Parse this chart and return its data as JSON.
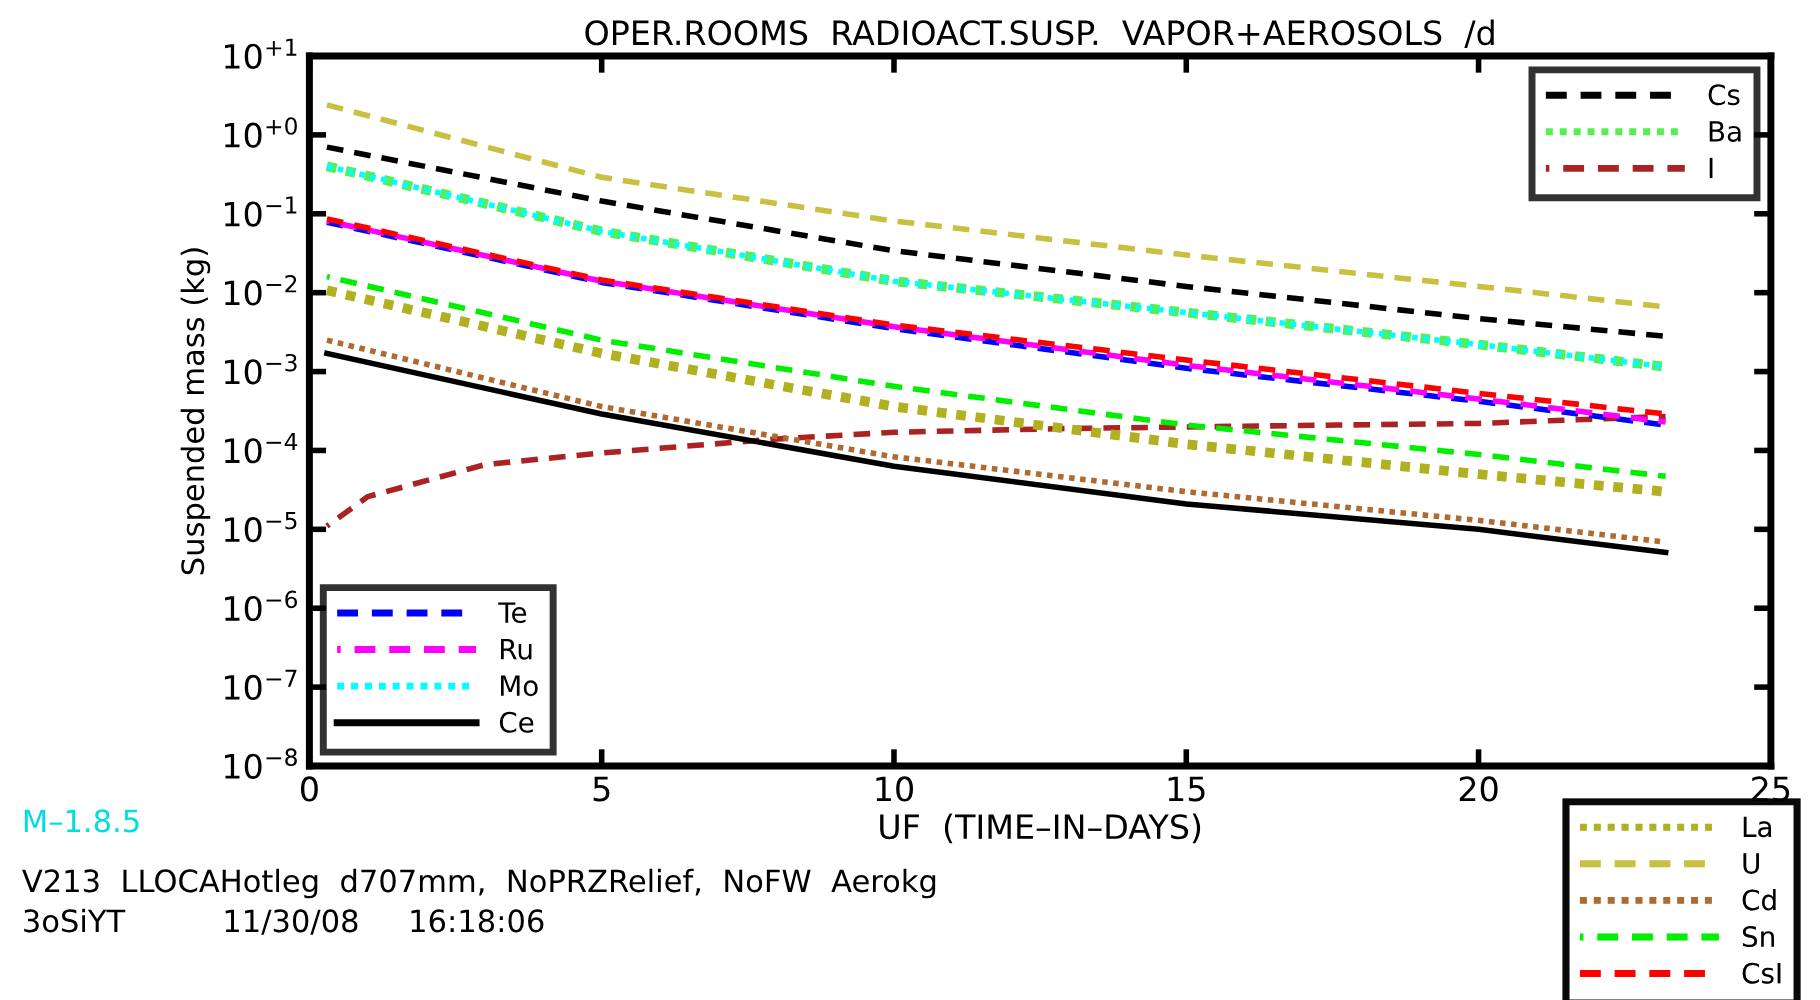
{
  "chart_data": {
    "type": "line",
    "title": "OPER.ROOMS  RADIOACT.SUSP.  VAPOR+AEROSOLS  /d",
    "xlabel": "UF  (TIME–IN–DAYS)",
    "ylabel": "Suspended mass (kg)",
    "log": "y",
    "xlim": [
      0,
      25
    ],
    "xticks": [
      0,
      5,
      10,
      15,
      20,
      25
    ],
    "ylim": [
      1e-08,
      10
    ],
    "yticks": [
      {
        "value": 10,
        "label": "10$^{+1}$"
      },
      {
        "value": 1,
        "label": "10$^{+0}$"
      },
      {
        "value": 0.1,
        "label": "10$^{−1}$"
      },
      {
        "value": 0.01,
        "label": "10$^{−2}$"
      },
      {
        "value": 0.001,
        "label": "10$^{−3}$"
      },
      {
        "value": 0.0001,
        "label": "10$^{−4}$"
      },
      {
        "value": 1e-05,
        "label": "10$^{−5}$"
      },
      {
        "value": 1e-06,
        "label": "10$^{−6}$"
      },
      {
        "value": 1e-07,
        "label": "10$^{−7}$"
      },
      {
        "value": 1e-08,
        "label": "10$^{−8}$"
      }
    ],
    "grid": false,
    "legend": [
      "top right",
      "bottom left",
      "bottom right"
    ],
    "x": [
      0.3,
      5,
      10,
      15,
      20,
      23.2
    ],
    "series": [
      {
        "name": "Cs",
        "color": "#000000",
        "line_style": "dashed",
        "values": [
          0.7,
          0.145,
          0.034,
          0.012,
          0.0047,
          0.0028
        ]
      },
      {
        "name": "Ba",
        "color": "#55ee55",
        "line_style": "dotted",
        "values": [
          0.4,
          0.06,
          0.014,
          0.0056,
          0.0022,
          0.00115
        ]
      },
      {
        "name": "I",
        "color": "#aa2222",
        "line_style": "dashed",
        "x": [
          0.3,
          1,
          3,
          5,
          8,
          10,
          13,
          17.6,
          20,
          23.2
        ],
        "values": [
          1.1e-05,
          2.6e-05,
          6.6e-05,
          9.3e-05,
          0.00014,
          0.00017,
          0.00019,
          0.00021,
          0.00022,
          0.00027
        ]
      },
      {
        "name": "Te",
        "color": "#0000ff",
        "line_style": "dashed",
        "values": [
          0.078,
          0.0135,
          0.0035,
          0.0011,
          0.00042,
          0.00021
        ]
      },
      {
        "name": "Ru",
        "color": "#ff00ff",
        "line_style": "dashed",
        "values": [
          0.081,
          0.014,
          0.0037,
          0.0012,
          0.00045,
          0.00023
        ]
      },
      {
        "name": "Mo",
        "color": "#00ffff",
        "line_style": "dotted",
        "values": [
          0.4,
          0.06,
          0.014,
          0.0056,
          0.0022,
          0.00115
        ]
      },
      {
        "name": "Ce",
        "color": "#000000",
        "line_style": "solid",
        "values": [
          0.0017,
          0.00029,
          6.3e-05,
          2.1e-05,
          1e-05,
          5.1e-06
        ]
      },
      {
        "name": "La",
        "color": "#b0b020",
        "line_style": "dotted",
        "values": [
          0.0107,
          0.0017,
          0.00036,
          0.00012,
          5e-05,
          3e-05
        ]
      },
      {
        "name": "U",
        "color": "#c8c040",
        "line_style": "dashed",
        "values": [
          2.4,
          0.29,
          0.081,
          0.03,
          0.012,
          0.0066
        ]
      },
      {
        "name": "Cd",
        "color": "#b06a30",
        "line_style": "dotted",
        "values": [
          0.0025,
          0.00036,
          8.3e-05,
          3e-05,
          1.3e-05,
          6.9e-06
        ]
      },
      {
        "name": "Sn",
        "color": "#00ee00",
        "line_style": "dashed",
        "values": [
          0.016,
          0.0025,
          0.00065,
          0.00021,
          8.9e-05,
          4.7e-05
        ]
      },
      {
        "name": "CsI",
        "color": "#ff0000",
        "line_style": "dashed",
        "values": [
          0.086,
          0.0145,
          0.0039,
          0.0014,
          0.00053,
          0.00029
        ]
      }
    ],
    "annotations": [
      "M–1.8.5",
      "V213  LLOCAHotleg  d707mm,  NoPRZRelief,  NoFW  Aerokg",
      "3oSiYT          11/30/08     16:18:06"
    ]
  }
}
